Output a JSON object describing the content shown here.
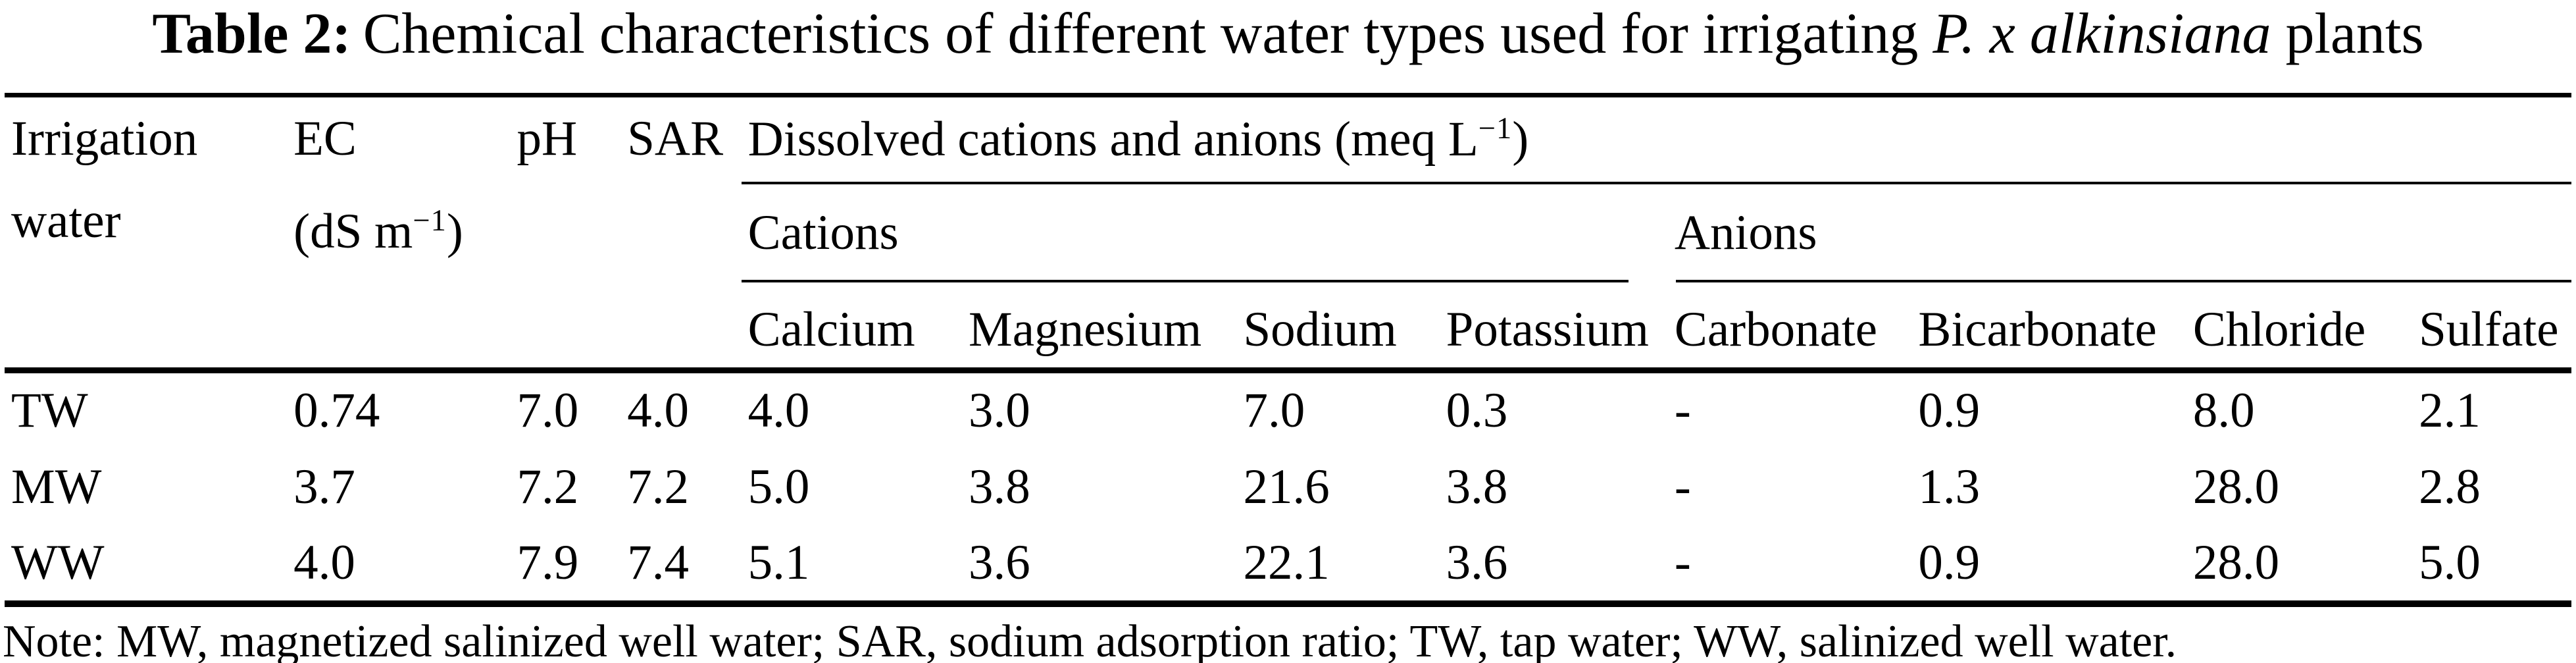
{
  "title": {
    "label": "Table 2:",
    "text": "Chemical characteristics of different water types used for irrigating",
    "species": "P. x alkinsiana",
    "suffix": "plants"
  },
  "table": {
    "header": {
      "irrigation_line1": "Irrigation",
      "irrigation_line2": "water",
      "ec_line1": "EC",
      "ec_unit_pre": "(dS m",
      "ec_unit_sup": "−1",
      "ec_unit_post": ")",
      "ph": "pH",
      "sar": "SAR",
      "dissolved_pre": "Dissolved cations and anions (meq L",
      "dissolved_sup": "−1",
      "dissolved_post": ")",
      "cations_group": "Cations",
      "anions_group": "Anions",
      "ion_columns": [
        "Calcium",
        "Magnesium",
        "Sodium",
        "Potassium",
        "Carbonate",
        "Bicarbonate",
        "Chloride",
        "Sulfate"
      ]
    },
    "rows": [
      {
        "water": "TW",
        "ec": "0.74",
        "ph": "7.0",
        "sar": "4.0",
        "calcium": "4.0",
        "magnesium": "3.0",
        "sodium": "7.0",
        "potassium": "0.3",
        "carbonate": "-",
        "bicarbonate": "0.9",
        "chloride": "8.0",
        "sulfate": "2.1"
      },
      {
        "water": "MW",
        "ec": "3.7",
        "ph": "7.2",
        "sar": "7.2",
        "calcium": "5.0",
        "magnesium": "3.8",
        "sodium": "21.6",
        "potassium": "3.8",
        "carbonate": "-",
        "bicarbonate": "1.3",
        "chloride": "28.0",
        "sulfate": "2.8"
      },
      {
        "water": "WW",
        "ec": "4.0",
        "ph": "7.9",
        "sar": "7.4",
        "calcium": "5.1",
        "magnesium": "3.6",
        "sodium": "22.1",
        "potassium": "3.6",
        "carbonate": "-",
        "bicarbonate": "0.9",
        "chloride": "28.0",
        "sulfate": "5.0"
      }
    ]
  },
  "note": "Note: MW, magnetized salinized well water; SAR, sodium adsorption ratio; TW, tap water; WW, salinized well water.",
  "colors": {
    "background": "#ffffff",
    "text": "#000000",
    "rule": "#000000"
  }
}
